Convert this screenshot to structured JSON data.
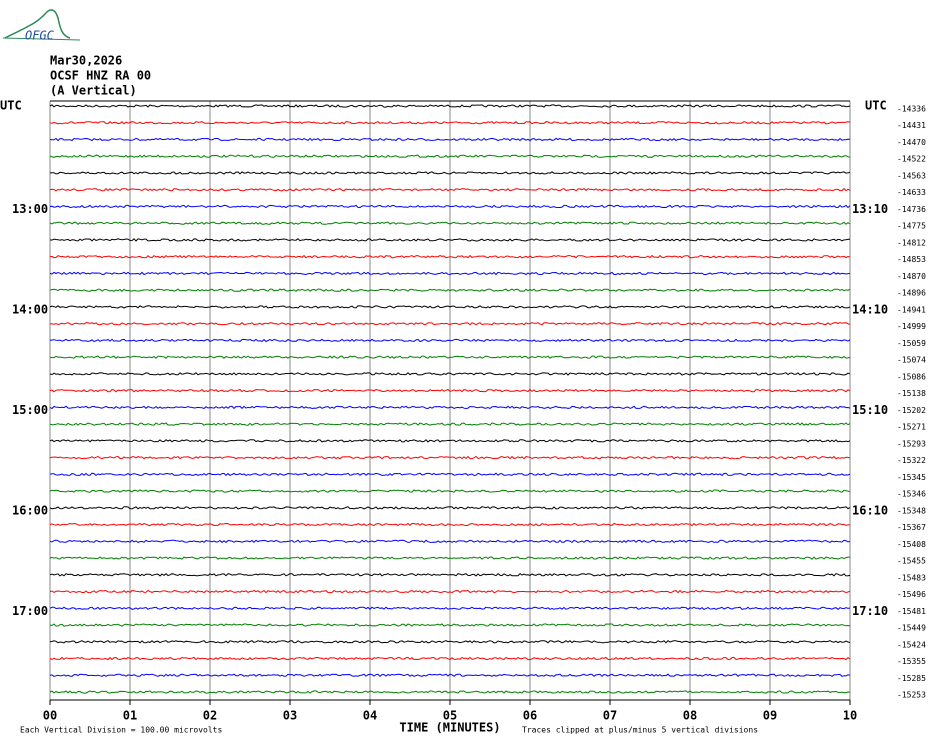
{
  "chart_data": {
    "type": "helicorder",
    "logo": "OFGC",
    "header": [
      "Mar30,2026",
      "OCSF HNZ RA 00",
      "(A Vertical)"
    ],
    "left_axis_label": "UTC",
    "right_axis_label": "UTC",
    "trace_colors": [
      "#000000",
      "#ff0000",
      "#0000ff",
      "#008000"
    ],
    "row_labels_left": [
      null,
      null,
      null,
      null,
      null,
      null,
      "13:00",
      null,
      null,
      null,
      null,
      null,
      "14:00",
      null,
      null,
      null,
      null,
      null,
      "15:00",
      null,
      null,
      null,
      null,
      null,
      "16:00",
      null,
      null,
      null,
      null,
      null,
      "17:00",
      null,
      null,
      null,
      null,
      null
    ],
    "row_labels_right": [
      null,
      null,
      null,
      null,
      null,
      null,
      "13:10",
      null,
      null,
      null,
      null,
      null,
      "14:10",
      null,
      null,
      null,
      null,
      null,
      "15:10",
      null,
      null,
      null,
      null,
      null,
      "16:10",
      null,
      null,
      null,
      null,
      null,
      "17:10",
      null,
      null,
      null,
      null,
      null
    ],
    "trace_offsets": [
      -14336,
      -14431,
      -14470,
      -14522,
      -14563,
      -14633,
      -14736,
      -14775,
      -14812,
      -14853,
      -14870,
      -14896,
      -14941,
      -14999,
      -15059,
      -15074,
      -15086,
      -15138,
      -15202,
      -15271,
      -15293,
      -15322,
      -15345,
      -15346,
      -15348,
      -15367,
      -15408,
      -15455,
      -15483,
      -15496,
      -15481,
      -15449,
      -15424,
      -15355,
      -15285,
      -15253
    ],
    "xlim": [
      0,
      10
    ],
    "xticks": [
      {
        "value": 0,
        "label": "00"
      },
      {
        "value": 1,
        "label": "01"
      },
      {
        "value": 2,
        "label": "02"
      },
      {
        "value": 3,
        "label": "03"
      },
      {
        "value": 4,
        "label": "04"
      },
      {
        "value": 5,
        "label": "05"
      },
      {
        "value": 6,
        "label": "06"
      },
      {
        "value": 7,
        "label": "07"
      },
      {
        "value": 8,
        "label": "08"
      },
      {
        "value": 9,
        "label": "09"
      },
      {
        "value": 10,
        "label": "10"
      }
    ],
    "x_label": "TIME (MINUTES)",
    "footer_left": "Each Vertical Division =  100.00 microvolts",
    "footer_right": "Traces clipped at plus/minus 5 vertical divisions"
  }
}
